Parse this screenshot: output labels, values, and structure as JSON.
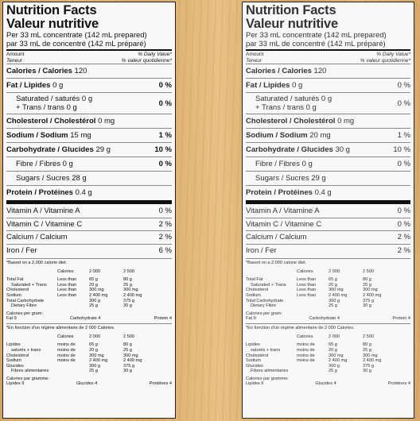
{
  "labels": [
    {
      "title_en": "Nutrition Facts",
      "title_fr": "Valeur nutritive",
      "serving_en": "Per 33 mL concentrate (142 mL prepared)",
      "serving_fr": "par 33 mL de concentré (142 mL préparé)",
      "amount_en": "Amount",
      "amount_fr": "Teneur",
      "dv_en": "% Daily Value*",
      "dv_fr": "% valeur quotidienne*",
      "calories_label": "Calories / Calories",
      "calories_value": "120",
      "fat_label": "Fat / Lipides",
      "fat_value": "0 g",
      "fat_pct": "0 %",
      "sat_line1": "Saturated / saturés 0 g",
      "sat_line2": "+ Trans / trans 0 g",
      "sat_pct": "0 %",
      "chol_label": "Cholesterol / Cholestérol",
      "chol_value": "0 mg",
      "sodium_label": "Sodium / Sodium",
      "sodium_value": "15 mg",
      "sodium_pct": "1 %",
      "carb_label": "Carbohydrate / Glucides",
      "carb_value": "29 g",
      "carb_pct": "10 %",
      "fibre_label": "Fibre / Fibres 0 g",
      "fibre_pct": "0 %",
      "sugars_label": "Sugars / Sucres 28 g",
      "protein_label": "Protein / Protéines",
      "protein_value": "0.4 g",
      "vit_a": "Vitamin A / Vitamine A",
      "vit_a_pct": "0 %",
      "vit_c": "Vitamin C / Vitamine C",
      "vit_c_pct": "2 %",
      "calcium": "Calcium / Calcium",
      "calcium_pct": "2 %",
      "iron": "Iron / Fer",
      "iron_pct": "6 %",
      "fn_en": "*Based on a 2,000 calorie diet.",
      "fn_fr": "*En fonction d'un régime alimentaire de 2 000 Calories.",
      "cpg_en": "Calories per gram:",
      "cpg_en_vals": [
        "Fat 9",
        "Carbohydrate 4",
        "Protein 4"
      ],
      "cpg_fr": "Calories par gramme:",
      "cpg_fr_vals": [
        "Lipides 9",
        "Glucides 4",
        "Protéines 4"
      ]
    },
    {
      "title_en": "Nutrition Facts",
      "title_fr": "Valeur nutritive",
      "serving_en": "Per 33 mL concentrate (142 mL prepared)",
      "serving_fr": "par 33 mL de concentré (142 mL préparé)",
      "amount_en": "Amount",
      "amount_fr": "Teneur",
      "dv_en": "% Daily Value*",
      "dv_fr": "% valeur quotidienne*",
      "calories_label": "Calories / Calories",
      "calories_value": "120",
      "fat_label": "Fat / Lipides",
      "fat_value": "0 g",
      "fat_pct": "0 %",
      "sat_line1": "Saturated / saturés 0 g",
      "sat_line2": "+ Trans / trans 0 g",
      "sat_pct": "0 %",
      "chol_label": "Cholesterol / Cholestérol",
      "chol_value": "0 mg",
      "sodium_label": "Sodium / Sodium",
      "sodium_value": "20 mg",
      "sodium_pct": "1 %",
      "carb_label": "Carbohydrate / Glucides",
      "carb_value": "30 g",
      "carb_pct": "10 %",
      "fibre_label": "Fibre / Fibres 0 g",
      "fibre_pct": "0 %",
      "sugars_label": "Sugars / Sucres 29 g",
      "protein_label": "Protein / Protéines",
      "protein_value": "0.4 g",
      "vit_a": "Vitamin A / Vitamine A",
      "vit_a_pct": "0 %",
      "vit_c": "Vitamin C / Vitamine C",
      "vit_c_pct": "0 %",
      "calcium": "Calcium / Calcium",
      "calcium_pct": "2 %",
      "iron": "Iron / Fer",
      "iron_pct": "2 %",
      "fn_en": "*Based on a 2,000 calorie diet.",
      "fn_fr": "*En fonction d'un régime alimentaire de 2 000 Calories.",
      "cpg_en": "Calories per gram:",
      "cpg_en_vals": [
        "Fat 9",
        "Carbohydrate 4",
        "Protein 4"
      ],
      "cpg_fr": "Calories par gramme:",
      "cpg_fr_vals": [
        "Lipides 9",
        "Glucides 4",
        "Protéines 4"
      ]
    }
  ],
  "dv_table_en": {
    "header": [
      "Calories",
      "2 000",
      "2 500"
    ],
    "rows": [
      [
        "Total Fat",
        "Less than",
        "65 g",
        "80 g"
      ],
      [
        "Saturated + Trans",
        "Less than",
        "20 g",
        "25 g"
      ],
      [
        "Cholesterol",
        "Less than",
        "300 mg",
        "300 mg"
      ],
      [
        "Sodium",
        "Less than",
        "2 400 mg",
        "2 400 mg"
      ],
      [
        "Total Carbohydrate",
        "",
        "300 g",
        "375 g"
      ],
      [
        "Dietary Fibre",
        "",
        "25 g",
        "30 g"
      ]
    ]
  },
  "dv_table_fr": {
    "header": [
      "Calories",
      "2 000",
      "2 500"
    ],
    "rows": [
      [
        "Lipides",
        "moins de",
        "65 g",
        "80 g"
      ],
      [
        "saturés + trans",
        "moins de",
        "20 g",
        "25 g"
      ],
      [
        "Cholestérol",
        "moins de",
        "300 mg",
        "300 mg"
      ],
      [
        "Sodium",
        "moins de",
        "2 400 mg",
        "2 400 mg"
      ],
      [
        "Glucides",
        "",
        "300 g",
        "375 g"
      ],
      [
        "Fibres alimentaires",
        "",
        "25 g",
        "30 g"
      ]
    ]
  }
}
